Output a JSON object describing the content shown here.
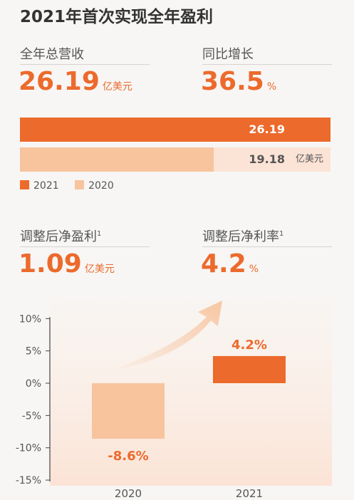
{
  "title": "2021年首次实现全年盈利",
  "revenue": {
    "label": "全年总营收",
    "value": "26.19",
    "unit": "亿美元"
  },
  "growth": {
    "label": "同比增长",
    "value": "36.5",
    "unit": "%"
  },
  "adj_net_income": {
    "label": "调整后净盈利",
    "footnote": "1",
    "value": "1.09",
    "unit": "亿美元"
  },
  "adj_net_margin": {
    "label": "调整后净利率",
    "footnote": "1",
    "value": "4.2",
    "unit": "%"
  },
  "colors": {
    "accent": "#ec6a2c",
    "light": "#f7c49e",
    "track": "#fbe3d5"
  },
  "chart_data": [
    {
      "type": "bar",
      "orientation": "horizontal",
      "categories": [
        "2021",
        "2020"
      ],
      "values": [
        26.19,
        19.18
      ],
      "value_labels": [
        "26.19",
        "19.18"
      ],
      "unit": "亿美元",
      "xlim": [
        0,
        30
      ],
      "legend": [
        "2021",
        "2020"
      ],
      "legend_position": "bottom-left"
    },
    {
      "type": "bar",
      "categories": [
        "2020",
        "2021"
      ],
      "values": [
        -8.6,
        4.2
      ],
      "value_labels": [
        "-8.6%",
        "4.2%"
      ],
      "yticks": [
        "10%",
        "5%",
        "0%",
        "-5%",
        "-10%",
        "-15%"
      ],
      "ytick_values": [
        10,
        5,
        0,
        -5,
        -10,
        -15
      ],
      "ylim": [
        -15,
        10
      ],
      "grid": false
    }
  ]
}
